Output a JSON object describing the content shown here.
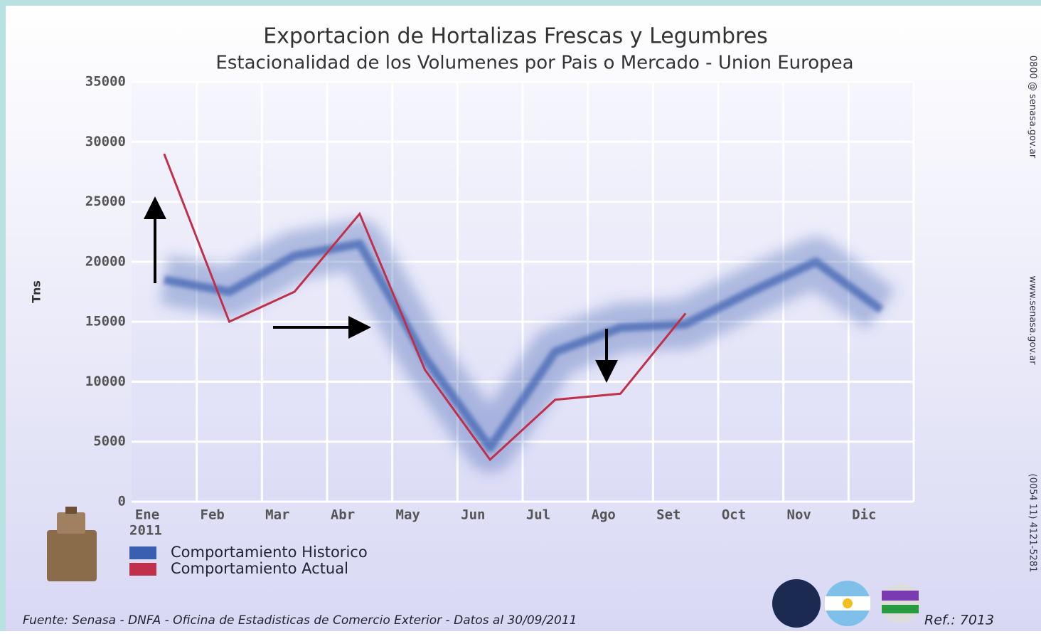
{
  "chart_data": {
    "type": "line",
    "title": "Exportacion de Hortalizas Frescas y Legumbres",
    "subtitle": "Estacionalidad de los Volumenes por Pais o Mercado - Union Europea",
    "y_label": "Tns",
    "categories": [
      "Ene",
      "Feb",
      "Mar",
      "Abr",
      "May",
      "Jun",
      "Jul",
      "Ago",
      "Set",
      "Oct",
      "Nov",
      "Dic"
    ],
    "year_label": "2011",
    "series": [
      {
        "name": "Comportamiento Historico",
        "color": "#3b5fb0",
        "values": [
          18500,
          17500,
          20500,
          21500,
          12000,
          4500,
          12500,
          14500,
          14800,
          17500,
          20000,
          16000
        ]
      },
      {
        "name": "Comportamiento Actual",
        "color": "#c0304a",
        "values": [
          29000,
          15000,
          17500,
          24000,
          11000,
          3500,
          8500,
          9000,
          15700,
          null,
          null,
          null
        ]
      }
    ],
    "ylim": [
      0,
      35000
    ],
    "yticks": [
      0,
      5000,
      10000,
      15000,
      20000,
      25000,
      30000,
      35000
    ],
    "grid": true,
    "source": "Fuente: Senasa - DNFA - Oficina de Estadisticas de Comercio Exterior - Datos al 30/09/2011",
    "reference": "Ref.: 7013",
    "side_texts": [
      "0800 @ senasa.gov.ar",
      "www.senasa.gov.ar",
      "(0054 11) 4121-5281"
    ]
  }
}
